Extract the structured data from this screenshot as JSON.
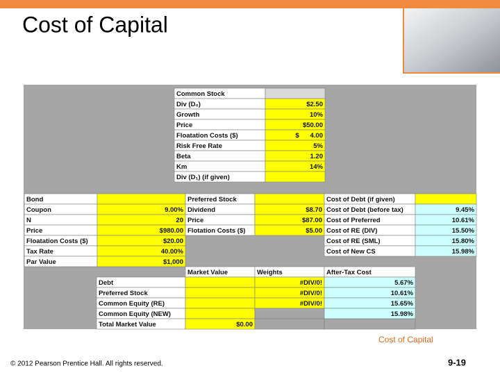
{
  "slide": {
    "title": "Cost of Capital",
    "caption": "Cost of Capital",
    "copyright": "© 2012 Pearson Prentice Hall. All rights reserved.",
    "page": "9-19"
  },
  "spreadsheet": {
    "common_stock": [
      [
        "Common Stock"
      ],
      [
        "Div (D₀)",
        "$2.50"
      ],
      [
        "Growth",
        "10%"
      ],
      [
        "Price",
        "$50.00"
      ],
      [
        "Floatation Costs ($)",
        "$      4.00"
      ],
      [
        "Risk Free Rate",
        "5%"
      ],
      [
        "Beta",
        "1.20"
      ],
      [
        "Km",
        "14%"
      ],
      [
        "Div (D₁) (if given)"
      ]
    ],
    "bond": [
      [
        "Bond"
      ],
      [
        "Coupon",
        "9.00%"
      ],
      [
        "N",
        "20"
      ],
      [
        "Price",
        "$980.00"
      ],
      [
        "Floatation Costs ($)",
        "$20.00"
      ],
      [
        "Tax Rate",
        "40.00%"
      ],
      [
        "Par Value",
        "$1,000"
      ]
    ],
    "preferred": [
      [
        "Preferred Stock"
      ],
      [
        "Dividend",
        "$8.70"
      ],
      [
        "Price",
        "$87.00"
      ],
      [
        "Flotation Costs ($)",
        "$5.00"
      ]
    ],
    "costs": [
      [
        "Cost of Debt (if given)"
      ],
      [
        "Cost of Debt (before tax)",
        "9.45%"
      ],
      [
        "Cost of Preferred",
        "10.61%"
      ],
      [
        "Cost of RE (DIV)",
        "15.50%"
      ],
      [
        "Cost of RE (SML)",
        "15.80%"
      ],
      [
        "Cost of New CS",
        "15.98%"
      ]
    ],
    "summary": {
      "headers": [
        "Market Value",
        "Weights",
        "After-Tax Cost"
      ],
      "rows": [
        [
          "Debt",
          null,
          "#DIV/0!",
          "5.67%"
        ],
        [
          "Preferred Stock",
          null,
          "#DIV/0!",
          "10.61%"
        ],
        [
          "Common Equity (RE)",
          null,
          "#DIV/0!",
          "15.65%"
        ],
        [
          "Common Equity (NEW)",
          null,
          null,
          "15.98%"
        ],
        [
          "Total Market Value",
          "$0.00"
        ]
      ]
    }
  }
}
